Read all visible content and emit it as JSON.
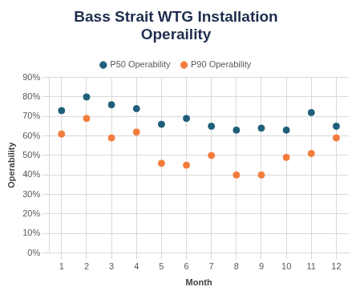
{
  "chart_data": {
    "type": "scatter",
    "title": "Bass Strait WTG Installation Operaility",
    "x_label": "Month",
    "y_label": "Operability",
    "categories": [
      "1",
      "2",
      "3",
      "4",
      "5",
      "6",
      "7",
      "8",
      "9",
      "10",
      "11",
      "12"
    ],
    "series": [
      {
        "name": "P50 Operability",
        "color": "#1f5f7a",
        "marker": "circle",
        "values": [
          73,
          80,
          76,
          74,
          66,
          69,
          65,
          63,
          64,
          63,
          72,
          65
        ]
      },
      {
        "name": "P90 Operability",
        "color": "#f47c3c",
        "marker": "circle",
        "values": [
          61,
          69,
          59,
          62,
          46,
          45,
          50,
          40,
          40,
          49,
          51,
          59
        ]
      }
    ],
    "ylim": [
      0,
      90
    ],
    "yticks": [
      {
        "value": 0,
        "label": "0%"
      },
      {
        "value": 10,
        "label": "10%"
      },
      {
        "value": 20,
        "label": "20%"
      },
      {
        "value": 30,
        "label": "30%"
      },
      {
        "value": 40,
        "label": "40%"
      },
      {
        "value": 50,
        "label": "50%"
      },
      {
        "value": 60,
        "label": "60%"
      },
      {
        "value": 70,
        "label": "70%"
      },
      {
        "value": 80,
        "label": "80%"
      },
      {
        "value": 90,
        "label": "90%"
      }
    ],
    "grid": true,
    "legend": "top"
  }
}
